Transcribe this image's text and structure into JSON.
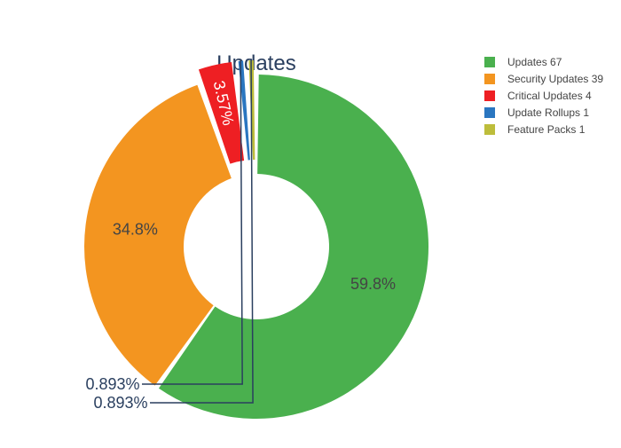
{
  "chart_data": {
    "type": "pie",
    "hole": true,
    "title": "Updates",
    "slices": [
      {
        "label": "Updates",
        "value": 67,
        "percent_label": "59.8%",
        "color": "#4ab04e",
        "label_color": "#444444"
      },
      {
        "label": "Security Updates",
        "value": 39,
        "percent_label": "34.8%",
        "color": "#f39520",
        "label_color": "#444444"
      },
      {
        "label": "Critical Updates",
        "value": 4,
        "percent_label": "3.57%",
        "color": "#ee1f23",
        "label_color": "#ffffff"
      },
      {
        "label": "Update Rollups",
        "value": 1,
        "percent_label": "0.893%",
        "color": "#2a76c0",
        "label_color": "#2a3f5f"
      },
      {
        "label": "Feature Packs",
        "value": 1,
        "percent_label": "0.893%",
        "color": "#bdbd3b",
        "label_color": "#2a3f5f"
      }
    ],
    "legend": [
      {
        "text": "Updates 67",
        "color": "#4ab04e"
      },
      {
        "text": "Security Updates 39",
        "color": "#f39520"
      },
      {
        "text": "Critical Updates 4",
        "color": "#ee1f23"
      },
      {
        "text": "Update Rollups 1",
        "color": "#2a76c0"
      },
      {
        "text": "Feature Packs 1",
        "color": "#bdbd3b"
      }
    ],
    "legend_position": "top-right"
  }
}
